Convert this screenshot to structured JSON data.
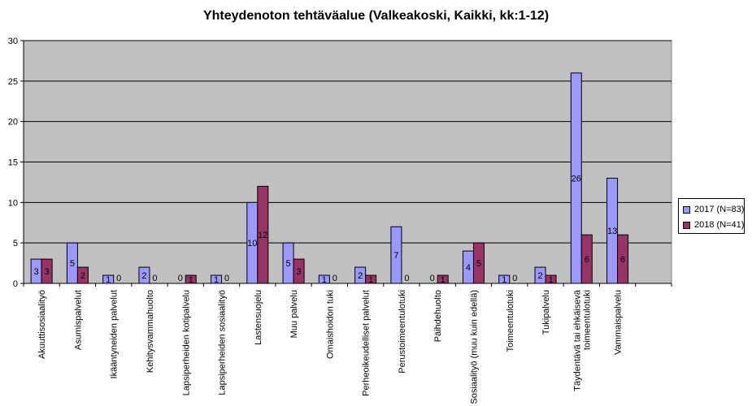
{
  "chart_data": {
    "type": "bar",
    "title": "Yhteydenoton tehtäväalue (Valkeakoski, Kaikki, kk:1-12)",
    "xlabel": "",
    "ylabel": "",
    "ylim": [
      0,
      30
    ],
    "yticks": [
      "0",
      "5",
      "10",
      "15",
      "20",
      "25",
      "30"
    ],
    "grid": true,
    "legend_position": "right",
    "categories": [
      "Akuuttisosiaalityö",
      "Asumispalvelut",
      "Ikääntyneiden palvelut",
      "Kehitysvammahuolto",
      "Lapsiperheiden kotipalvelu",
      "Lapsiperheiden sosiaalityö",
      "Lastensuojelu",
      "Muu palvelu",
      "Omaishoidon tuki",
      "Perheoikeudelliset palvelut",
      "Perustoimeentulotuki",
      "Päihdehuolto",
      "Sosiaalityö (muu kuin edellä)",
      "Toimeentulotuki",
      "Tukipalvelu",
      "Täydentävä tai ehkäisevä toimeentulotuki",
      "Vammaispalvelu"
    ],
    "series": [
      {
        "name": "2017 (N=83)",
        "color": "#9999ff",
        "values": [
          3,
          5,
          1,
          2,
          0,
          1,
          10,
          5,
          1,
          2,
          7,
          0,
          4,
          1,
          2,
          26,
          13
        ]
      },
      {
        "name": "2018 (N=41)",
        "color": "#993366",
        "values": [
          3,
          2,
          0,
          0,
          1,
          0,
          12,
          3,
          0,
          1,
          0,
          1,
          5,
          0,
          1,
          6,
          6
        ]
      }
    ],
    "plot_background": "#c0c0c0"
  }
}
